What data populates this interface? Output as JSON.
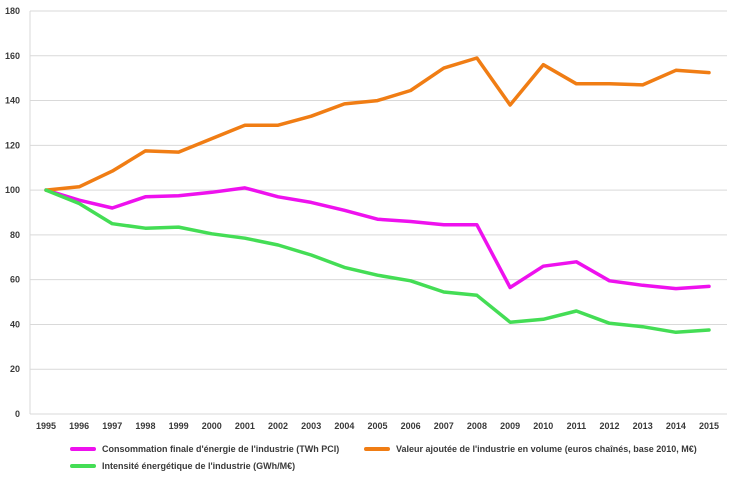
{
  "chart_data": {
    "type": "line",
    "title": "",
    "xlabel": "",
    "ylabel": "",
    "x": [
      "1995",
      "1996",
      "1997",
      "1998",
      "1999",
      "2000",
      "2001",
      "2002",
      "2003",
      "2004",
      "2005",
      "2006",
      "2007",
      "2008",
      "2009",
      "2010",
      "2011",
      "2012",
      "2013",
      "2014",
      "2015"
    ],
    "ylim": [
      0,
      180
    ],
    "yticks": [
      0,
      20,
      40,
      60,
      80,
      100,
      120,
      140,
      160,
      180
    ],
    "grid": "horizontal",
    "legend_position": "bottom",
    "series": [
      {
        "name": "Consommation finale d'énergie de l'industrie (TWh PCI)",
        "color": "#ee11ee",
        "values": [
          100,
          95.5,
          92,
          97,
          97.5,
          99,
          101,
          97,
          94.5,
          91,
          87,
          86,
          84.5,
          84.5,
          56.5,
          66,
          68,
          59.5,
          57.5,
          56,
          57
        ]
      },
      {
        "name": "Valeur ajoutée de l'industrie en volume (euros chaînés, base 2010, M€)",
        "color": "#f07d14",
        "values": [
          100,
          101.5,
          108.5,
          117.5,
          117,
          123,
          129,
          129,
          133,
          138.5,
          140,
          144.5,
          154.5,
          159,
          138,
          156,
          147.5,
          147.5,
          147,
          153.5,
          152.5
        ]
      },
      {
        "name": "Intensité énergétique de l'industrie (GWh/M€)",
        "color": "#44dd55",
        "values": [
          100,
          94,
          85,
          83,
          83.5,
          80.5,
          78.5,
          75.5,
          71,
          65.5,
          62,
          59.5,
          54.5,
          53,
          41,
          42.3,
          46,
          40.5,
          39,
          36.5,
          37.5
        ]
      }
    ]
  }
}
